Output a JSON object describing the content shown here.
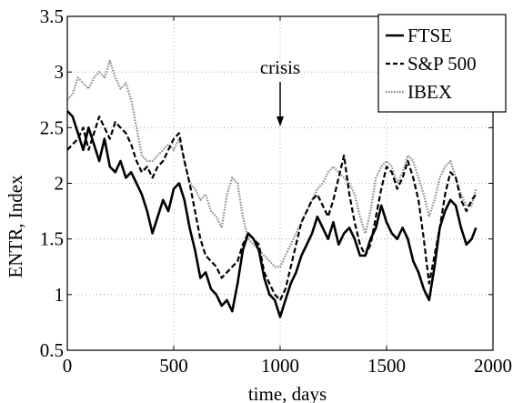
{
  "chart_data": {
    "type": "line",
    "xlabel": "time, days",
    "ylabel": "ENTR, Index",
    "xlim": [
      0,
      2000
    ],
    "ylim": [
      0.5,
      3.5
    ],
    "x_ticks": [
      0,
      500,
      1000,
      1500,
      2000
    ],
    "x_tick_labels": [
      "0",
      "500",
      "1000",
      "1500",
      "2000"
    ],
    "y_ticks": [
      0.5,
      1,
      1.5,
      2,
      2.5,
      3,
      3.5
    ],
    "y_tick_labels": [
      "0.5",
      "1",
      "1.5",
      "2",
      "2.5",
      "3",
      "3.5"
    ],
    "grid": "dotted",
    "legend_position": "top-right",
    "annotation": {
      "text": "crisis",
      "x": 1000,
      "arrow": "down"
    },
    "series": [
      {
        "name": "FTSE",
        "style": "solid",
        "color": "#000000",
        "x": [
          0,
          25,
          50,
          75,
          100,
          125,
          150,
          175,
          200,
          225,
          250,
          275,
          300,
          325,
          350,
          375,
          400,
          425,
          450,
          475,
          500,
          525,
          550,
          575,
          600,
          625,
          650,
          675,
          700,
          725,
          750,
          775,
          800,
          825,
          850,
          875,
          900,
          925,
          950,
          975,
          1000,
          1025,
          1050,
          1075,
          1100,
          1125,
          1150,
          1175,
          1200,
          1225,
          1250,
          1275,
          1300,
          1325,
          1350,
          1375,
          1400,
          1425,
          1450,
          1475,
          1500,
          1525,
          1550,
          1575,
          1600,
          1625,
          1650,
          1675,
          1700,
          1725,
          1750,
          1775,
          1800,
          1825,
          1850,
          1875,
          1900,
          1920
        ],
        "y": [
          2.65,
          2.6,
          2.45,
          2.3,
          2.5,
          2.35,
          2.2,
          2.4,
          2.15,
          2.1,
          2.2,
          2.05,
          2.1,
          2.0,
          1.9,
          1.75,
          1.55,
          1.7,
          1.85,
          1.75,
          1.95,
          2.0,
          1.85,
          1.6,
          1.4,
          1.15,
          1.2,
          1.05,
          1.0,
          0.9,
          0.95,
          0.85,
          1.1,
          1.4,
          1.55,
          1.5,
          1.4,
          1.15,
          1.0,
          0.95,
          0.8,
          0.95,
          1.1,
          1.2,
          1.35,
          1.45,
          1.55,
          1.7,
          1.6,
          1.5,
          1.65,
          1.45,
          1.55,
          1.6,
          1.5,
          1.35,
          1.35,
          1.5,
          1.6,
          1.8,
          1.65,
          1.55,
          1.5,
          1.6,
          1.5,
          1.3,
          1.2,
          1.05,
          0.95,
          1.25,
          1.6,
          1.75,
          1.85,
          1.8,
          1.6,
          1.45,
          1.5,
          1.6
        ]
      },
      {
        "name": "S&P 500",
        "style": "dashed",
        "color": "#000000",
        "x": [
          0,
          25,
          50,
          75,
          100,
          125,
          150,
          175,
          200,
          225,
          250,
          275,
          300,
          325,
          350,
          375,
          400,
          425,
          450,
          475,
          500,
          525,
          550,
          575,
          600,
          625,
          650,
          675,
          700,
          725,
          750,
          775,
          800,
          825,
          850,
          875,
          900,
          925,
          950,
          975,
          1000,
          1025,
          1050,
          1075,
          1100,
          1125,
          1150,
          1175,
          1200,
          1225,
          1250,
          1275,
          1300,
          1325,
          1350,
          1375,
          1400,
          1425,
          1450,
          1475,
          1500,
          1525,
          1550,
          1575,
          1600,
          1625,
          1650,
          1675,
          1700,
          1725,
          1750,
          1775,
          1800,
          1825,
          1850,
          1875,
          1900,
          1920
        ],
        "y": [
          2.3,
          2.35,
          2.4,
          2.5,
          2.3,
          2.45,
          2.6,
          2.5,
          2.4,
          2.55,
          2.5,
          2.45,
          2.35,
          2.2,
          2.1,
          2.15,
          2.05,
          2.15,
          2.2,
          2.3,
          2.4,
          2.45,
          2.2,
          2.0,
          1.75,
          1.5,
          1.35,
          1.3,
          1.25,
          1.15,
          1.2,
          1.25,
          1.3,
          1.45,
          1.55,
          1.5,
          1.45,
          1.2,
          1.1,
          1.0,
          0.95,
          1.05,
          1.25,
          1.45,
          1.65,
          1.75,
          1.85,
          1.9,
          1.8,
          1.7,
          1.85,
          2.05,
          2.25,
          1.9,
          1.65,
          1.45,
          1.35,
          1.45,
          1.7,
          1.95,
          2.15,
          2.1,
          1.95,
          2.05,
          2.2,
          2.05,
          1.85,
          1.5,
          1.1,
          1.35,
          1.6,
          1.9,
          2.1,
          2.05,
          1.85,
          1.75,
          1.85,
          1.9
        ]
      },
      {
        "name": "IBEX",
        "style": "dotted",
        "color": "#888888",
        "x": [
          0,
          25,
          50,
          75,
          100,
          125,
          150,
          175,
          200,
          225,
          250,
          275,
          300,
          325,
          350,
          375,
          400,
          425,
          450,
          475,
          500,
          525,
          550,
          575,
          600,
          625,
          650,
          675,
          700,
          725,
          750,
          775,
          800,
          825,
          850,
          875,
          900,
          925,
          950,
          975,
          1000,
          1025,
          1050,
          1075,
          1100,
          1125,
          1150,
          1175,
          1200,
          1225,
          1250,
          1275,
          1300,
          1325,
          1350,
          1375,
          1400,
          1425,
          1450,
          1475,
          1500,
          1525,
          1550,
          1575,
          1600,
          1625,
          1650,
          1675,
          1700,
          1725,
          1750,
          1775,
          1800,
          1825,
          1850,
          1875,
          1900,
          1920
        ],
        "y": [
          2.75,
          2.8,
          2.95,
          2.9,
          2.85,
          2.95,
          3.0,
          2.95,
          3.1,
          2.95,
          2.85,
          2.9,
          2.75,
          2.5,
          2.25,
          2.2,
          2.2,
          2.25,
          2.3,
          2.35,
          2.3,
          2.4,
          2.2,
          2.0,
          1.95,
          1.85,
          1.9,
          1.75,
          1.7,
          1.6,
          1.9,
          2.05,
          2.0,
          1.7,
          1.5,
          1.45,
          1.4,
          1.35,
          1.3,
          1.25,
          1.25,
          1.35,
          1.45,
          1.55,
          1.65,
          1.75,
          1.85,
          1.95,
          2.0,
          2.1,
          2.15,
          2.1,
          2.05,
          2.0,
          1.9,
          1.7,
          1.55,
          1.75,
          2.05,
          2.15,
          2.2,
          2.15,
          2.0,
          2.1,
          2.25,
          2.2,
          2.05,
          1.9,
          1.7,
          1.85,
          2.05,
          2.15,
          2.2,
          2.05,
          1.9,
          1.8,
          1.8,
          1.95
        ]
      }
    ]
  }
}
